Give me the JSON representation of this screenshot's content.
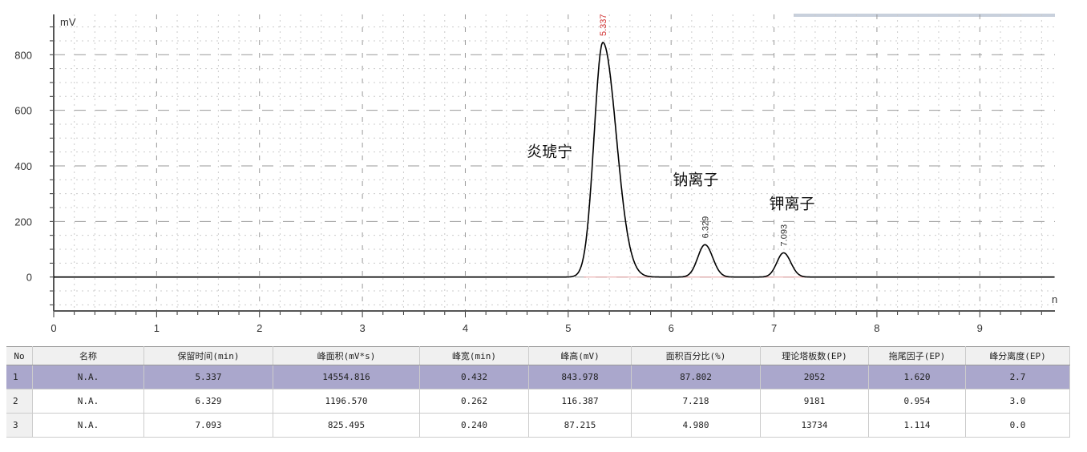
{
  "chart_data": {
    "type": "line",
    "ylabel": "mV",
    "xlabel": "",
    "xlim": [
      0,
      9.73
    ],
    "ylim": [
      -122,
      945
    ],
    "xticks": [
      0,
      1,
      2,
      3,
      4,
      5,
      6,
      7,
      8,
      9
    ],
    "yticks": [
      0,
      200,
      400,
      600,
      800
    ],
    "grid": true,
    "peaks": [
      {
        "rt": 5.337,
        "height": 843.978,
        "label": "5.337",
        "label_color": "#d03030",
        "name": "炎琥宁"
      },
      {
        "rt": 6.329,
        "height": 116.387,
        "label": "6.329",
        "label_color": "#333333",
        "name": "钠离子"
      },
      {
        "rt": 7.093,
        "height": 87.215,
        "label": "7.093",
        "label_color": "#333333",
        "name": "钾离子"
      }
    ],
    "line_color": "#000000",
    "x_unit_partial": "n"
  },
  "table": {
    "headers": [
      "No",
      "名称",
      "保留时间(min)",
      "峰面积(mV*s)",
      "峰宽(min)",
      "峰高(mV)",
      "面积百分比(%)",
      "理论塔板数(EP)",
      "拖尾因子(EP)",
      "峰分离度(EP)"
    ],
    "rows": [
      [
        "1",
        "N.A.",
        "5.337",
        "14554.816",
        "0.432",
        "843.978",
        "87.802",
        "2052",
        "1.620",
        "2.7"
      ],
      [
        "2",
        "N.A.",
        "6.329",
        "1196.570",
        "0.262",
        "116.387",
        "7.218",
        "9181",
        "0.954",
        "3.0"
      ],
      [
        "3",
        "N.A.",
        "7.093",
        "825.495",
        "0.240",
        "87.215",
        "4.980",
        "13734",
        "1.114",
        "0.0"
      ]
    ],
    "selected_row": 1,
    "selected_color": "#aaa7cc"
  }
}
